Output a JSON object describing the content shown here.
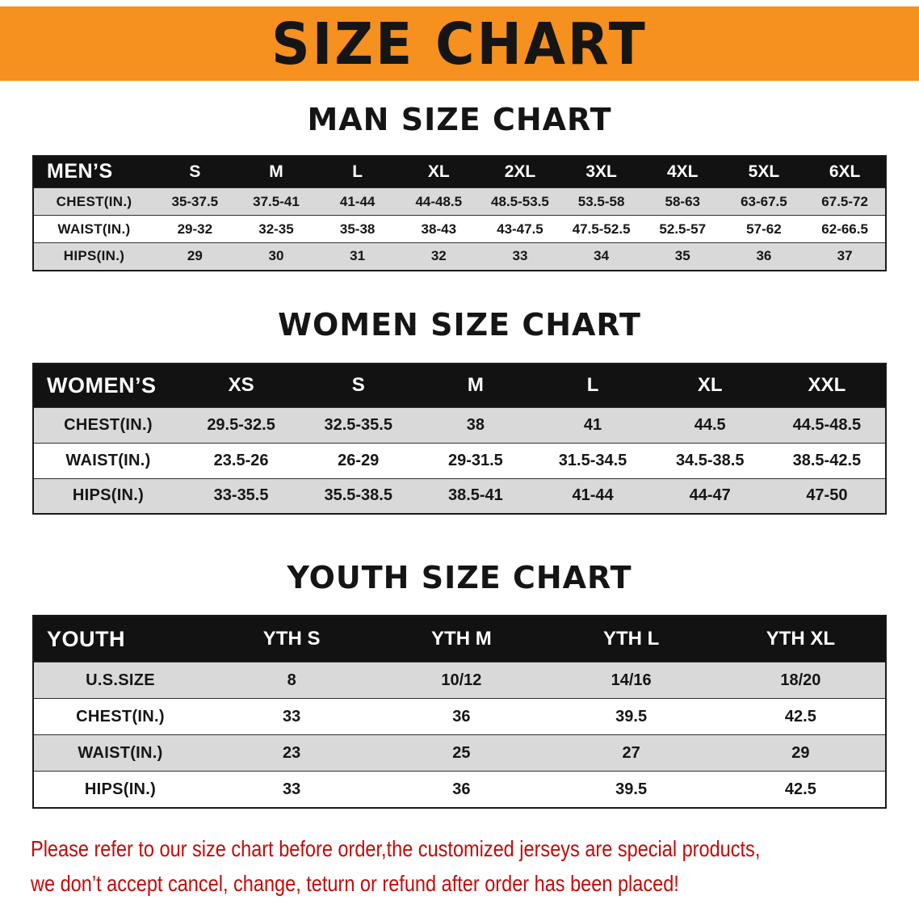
{
  "banner": {
    "title": "SIZE CHART"
  },
  "colors": {
    "banner-bg": "#f6901e",
    "banner-text": "#151515",
    "table-header-bg": "#121212",
    "table-header-text": "#ffffff",
    "row-alt-bg": "#d9d9d9",
    "row-bg": "#ffffff",
    "notice-text": "#c40a0a"
  },
  "sections": [
    {
      "id": "men",
      "title": "MAN SIZE CHART",
      "header": [
        "MEN’S",
        "S",
        "M",
        "L",
        "XL",
        "2XL",
        "3XL",
        "4XL",
        "5XL",
        "6XL"
      ],
      "rows": [
        [
          "CHEST(IN.)",
          "35-37.5",
          "37.5-41",
          "41-44",
          "44-48.5",
          "48.5-53.5",
          "53.5-58",
          "58-63",
          "63-67.5",
          "67.5-72"
        ],
        [
          "WAIST(IN.)",
          "29-32",
          "32-35",
          "35-38",
          "38-43",
          "43-47.5",
          "47.5-52.5",
          "52.5-57",
          "57-62",
          "62-66.5"
        ],
        [
          "HIPS(IN.)",
          "29",
          "30",
          "31",
          "32",
          "33",
          "34",
          "35",
          "36",
          "37"
        ]
      ]
    },
    {
      "id": "women",
      "title": "WOMEN SIZE CHART",
      "header": [
        "WOMEN’S",
        "XS",
        "S",
        "M",
        "L",
        "XL",
        "XXL"
      ],
      "rows": [
        [
          "CHEST(IN.)",
          "29.5-32.5",
          "32.5-35.5",
          "38",
          "41",
          "44.5",
          "44.5-48.5"
        ],
        [
          "WAIST(IN.)",
          "23.5-26",
          "26-29",
          "29-31.5",
          "31.5-34.5",
          "34.5-38.5",
          "38.5-42.5"
        ],
        [
          "HIPS(IN.)",
          "33-35.5",
          "35.5-38.5",
          "38.5-41",
          "41-44",
          "44-47",
          "47-50"
        ]
      ]
    },
    {
      "id": "youth",
      "title": "YOUTH SIZE CHART",
      "header": [
        "YOUTH",
        "YTH S",
        "YTH M",
        "YTH L",
        "YTH XL"
      ],
      "rows": [
        [
          "U.S.SIZE",
          "8",
          "10/12",
          "14/16",
          "18/20"
        ],
        [
          "CHEST(IN.)",
          "33",
          "36",
          "39.5",
          "42.5"
        ],
        [
          "WAIST(IN.)",
          "23",
          "25",
          "27",
          "29"
        ],
        [
          "HIPS(IN.)",
          "33",
          "36",
          "39.5",
          "42.5"
        ]
      ]
    }
  ],
  "footer": {
    "lines": [
      "Please refer to our size chart before order,the customized jerseys are special products,",
      "we don’t accept cancel, change, teturn or refund after order has been placed!"
    ]
  }
}
